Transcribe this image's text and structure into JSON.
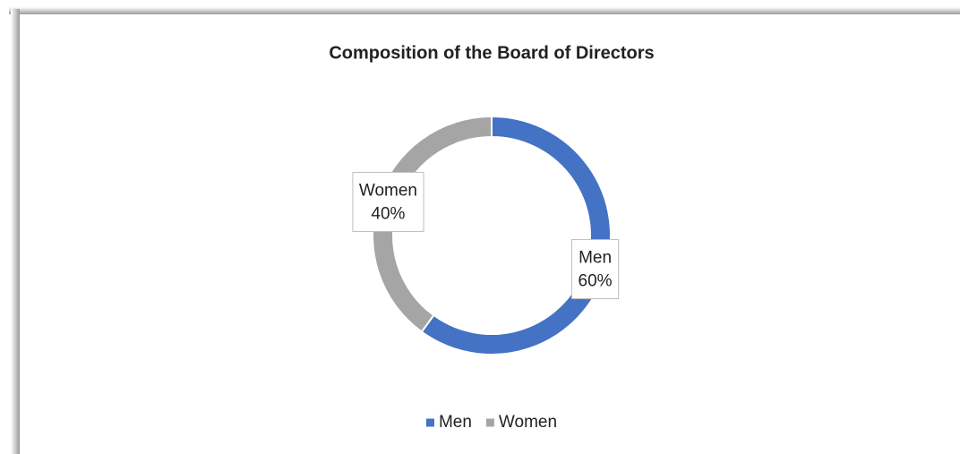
{
  "chart_data": {
    "type": "donut",
    "title": "Composition of the Board of Directors",
    "categories": [
      "Men",
      "Women"
    ],
    "values": [
      60,
      40
    ],
    "value_labels": [
      "60%",
      "40%"
    ],
    "colors": [
      "#4472c4",
      "#a5a5a5"
    ],
    "legend": "bottom"
  }
}
